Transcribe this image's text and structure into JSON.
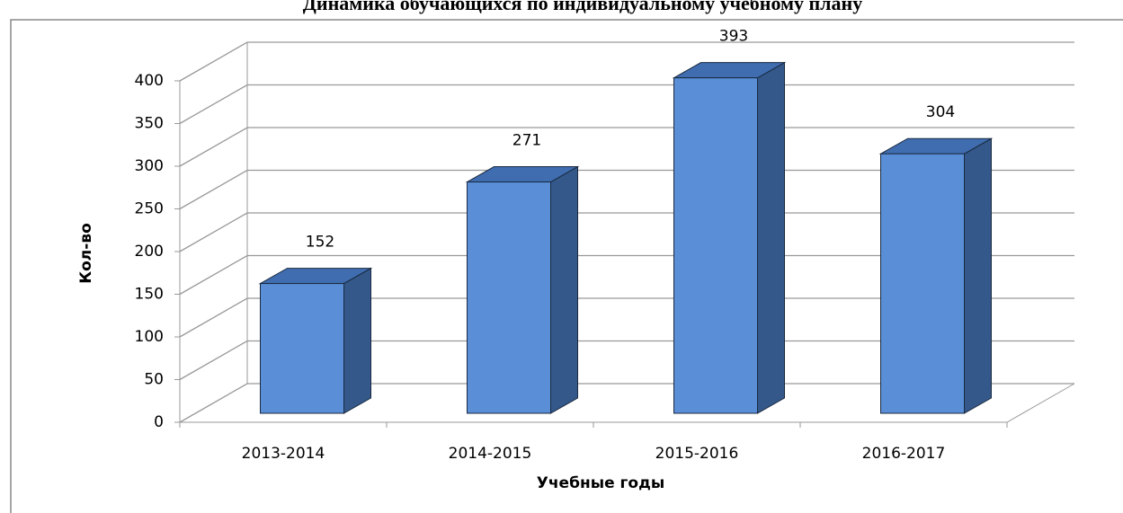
{
  "chart_data": {
    "type": "bar3d",
    "title": "Динамика обучающихся по индивидуальному учебному плану",
    "x_label": "Учебные годы",
    "y_label": "Кол-во",
    "categories": [
      "2013-2014",
      "2014-2015",
      "2015-2016",
      "2016-2017"
    ],
    "values": [
      152,
      271,
      393,
      304
    ],
    "color": "#5a8fd8",
    "ylim": [
      0,
      400
    ],
    "yticks": [
      0,
      50,
      100,
      150,
      200,
      250,
      300,
      350,
      400
    ],
    "grid": true,
    "data_labels": true
  }
}
